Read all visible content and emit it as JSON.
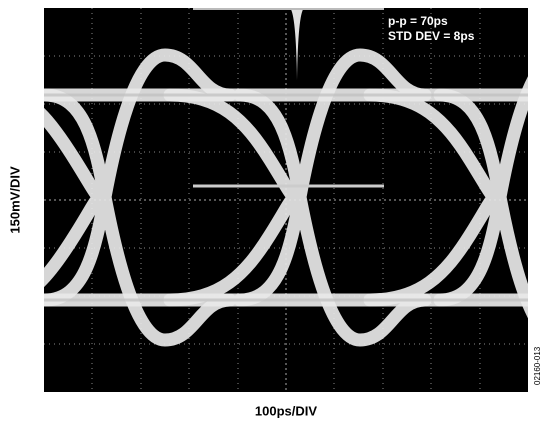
{
  "screen": {
    "annotations": [
      "p-p = 70ps",
      "STD DEV = 8ps"
    ]
  },
  "axes": {
    "y_label": "150mV/DIV",
    "x_label": "100ps/DIV"
  },
  "figure_id": "02160-013"
}
